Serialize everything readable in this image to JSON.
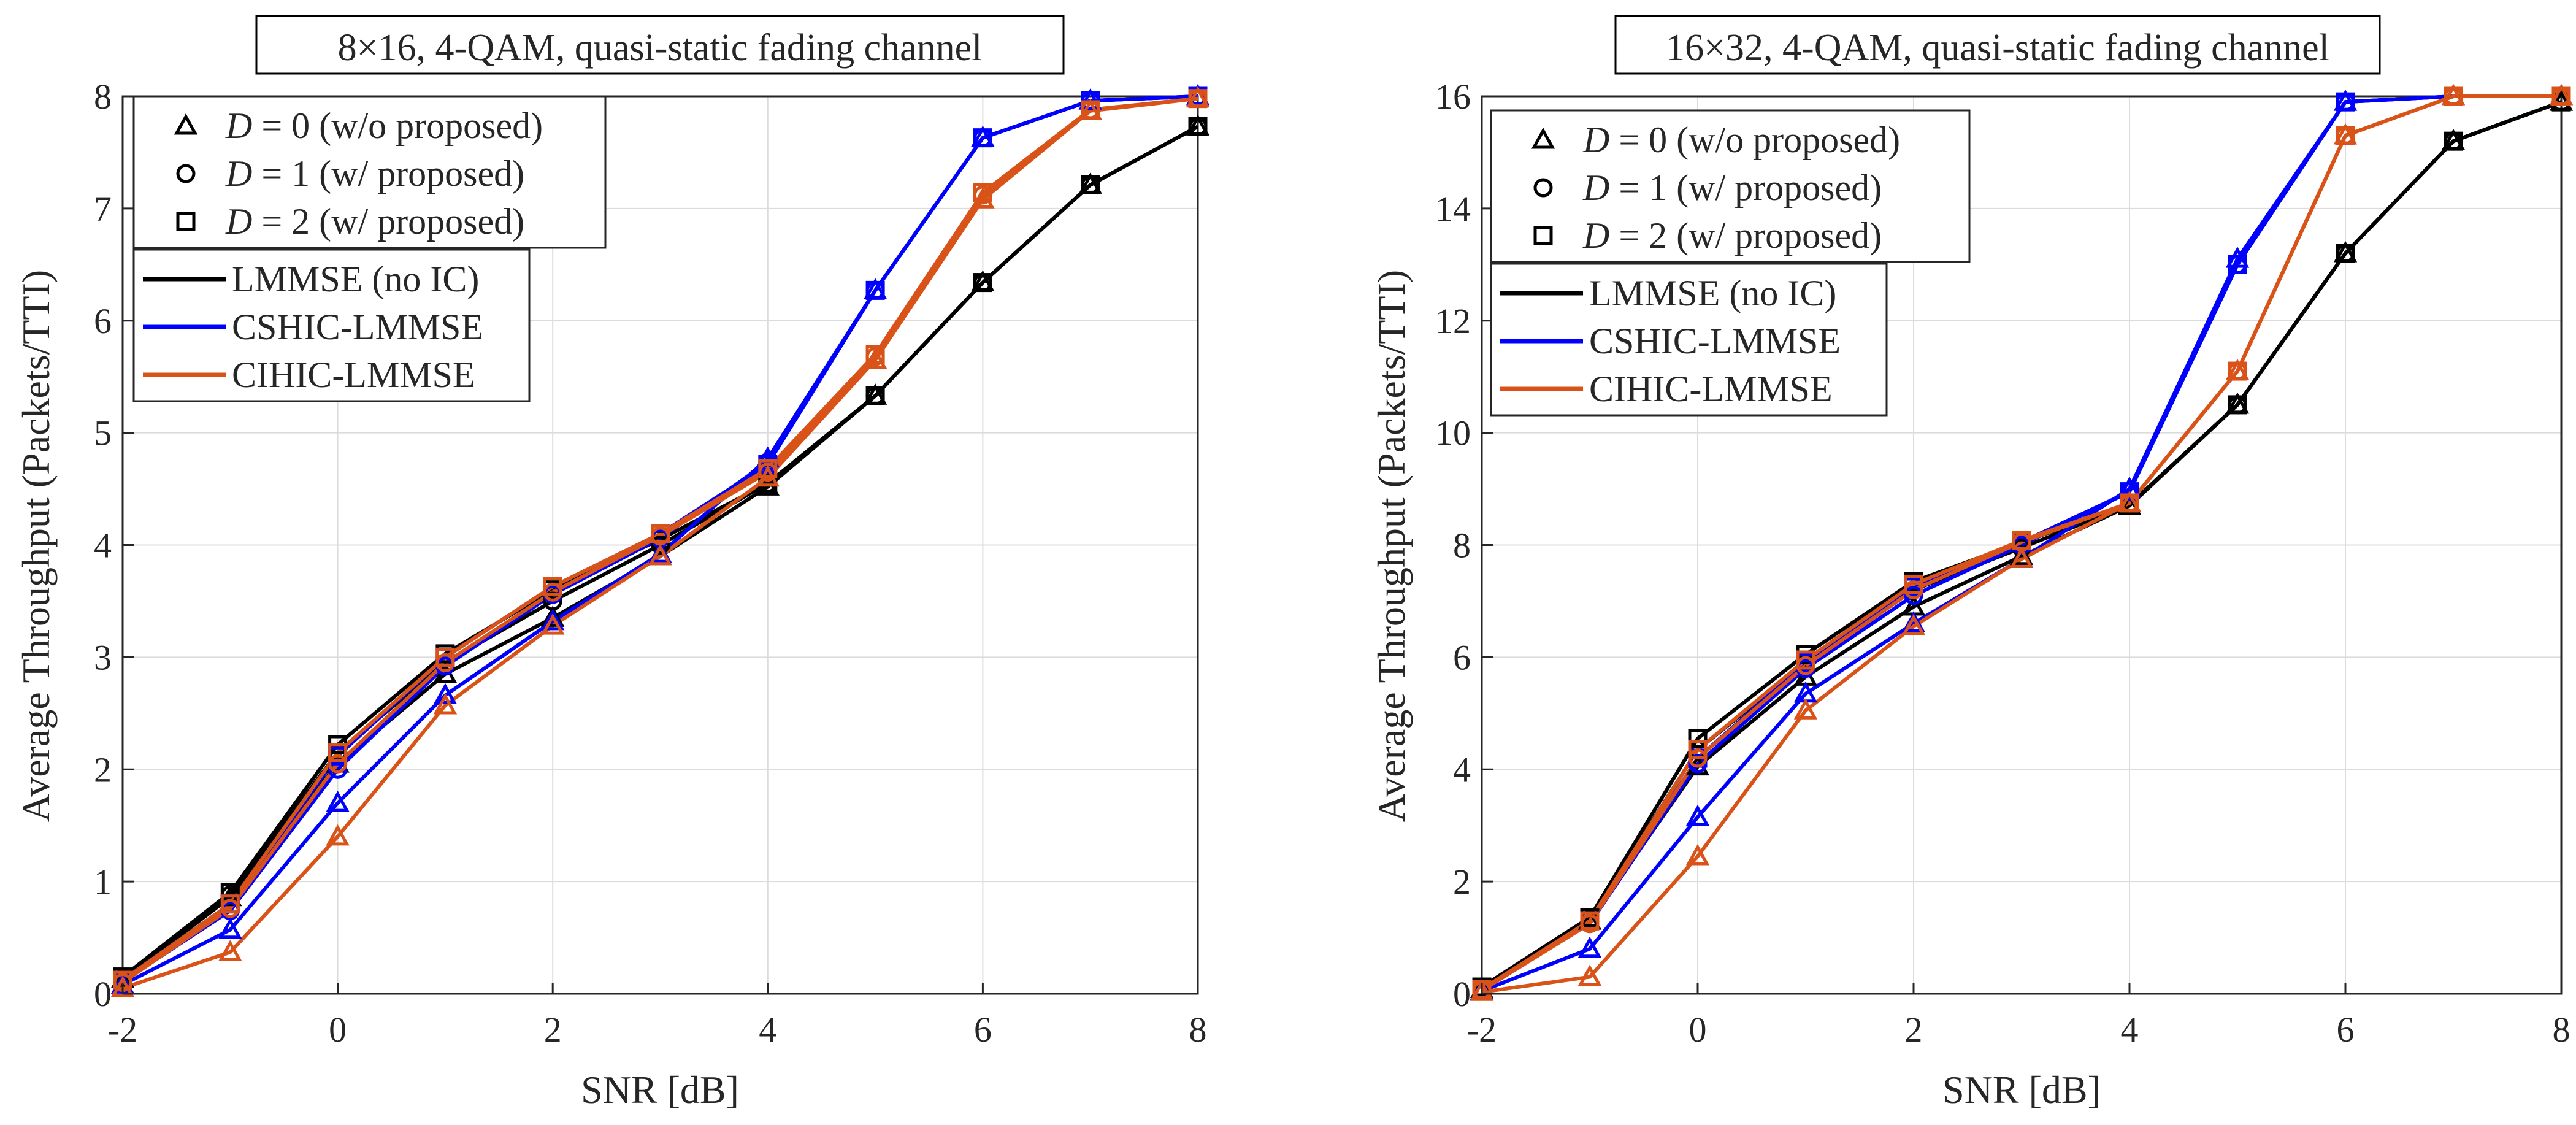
{
  "chart_data": [
    {
      "type": "line",
      "title": "8×16, 4-QAM, quasi-static fading channel",
      "xlabel": "SNR [dB]",
      "ylabel": "Average Throughput (Packets/TTI)",
      "xlim": [
        -2,
        8
      ],
      "ylim": [
        0,
        8
      ],
      "xticks": [
        -2,
        0,
        2,
        4,
        6,
        8
      ],
      "yticks": [
        0,
        1,
        2,
        3,
        4,
        5,
        6,
        7,
        8
      ],
      "grid": true,
      "x": [
        -2,
        -1,
        0,
        1,
        2,
        3,
        4,
        5,
        6,
        7,
        8
      ],
      "marker_legend": [
        {
          "marker": "triangle",
          "label_var": "D",
          "label_rest": " = 0 (w/o proposed)"
        },
        {
          "marker": "circle",
          "label_var": "D",
          "label_rest": " = 1 (w/ proposed)"
        },
        {
          "marker": "square",
          "label_var": "D",
          "label_rest": " = 2 (w/ proposed)"
        }
      ],
      "line_legend": [
        {
          "label": "LMMSE (no IC)",
          "color": "#000000"
        },
        {
          "label": "CSHIC-LMMSE",
          "color": "#0000ff"
        },
        {
          "label": "CIHIC-LMMSE",
          "color": "#d95319"
        }
      ],
      "series": [
        {
          "name": "LMMSE (no IC), D = 0",
          "color": "#000000",
          "marker": "triangle",
          "values": [
            0.13,
            0.86,
            2.05,
            2.85,
            3.35,
            3.9,
            4.52,
            5.33,
            6.34,
            7.21,
            7.73
          ]
        },
        {
          "name": "LMMSE (no IC), D = 1",
          "color": "#000000",
          "marker": "circle",
          "values": [
            0.14,
            0.88,
            2.15,
            2.95,
            3.5,
            4.0,
            4.55,
            5.33,
            6.34,
            7.21,
            7.73
          ]
        },
        {
          "name": "LMMSE (no IC), D = 2",
          "color": "#000000",
          "marker": "square",
          "values": [
            0.15,
            0.9,
            2.22,
            3.03,
            3.6,
            4.05,
            4.55,
            5.33,
            6.34,
            7.21,
            7.73
          ]
        },
        {
          "name": "CSHIC-LMMSE, D = 0",
          "color": "#0000ff",
          "marker": "triangle",
          "values": [
            0.08,
            0.57,
            1.7,
            2.66,
            3.32,
            3.92,
            4.77,
            6.27,
            7.63,
            7.96,
            8.0
          ]
        },
        {
          "name": "CSHIC-LMMSE, D = 1",
          "color": "#0000ff",
          "marker": "circle",
          "values": [
            0.11,
            0.74,
            2.0,
            2.92,
            3.56,
            4.06,
            4.74,
            6.27,
            7.63,
            7.96,
            8.0
          ]
        },
        {
          "name": "CSHIC-LMMSE, D = 2",
          "color": "#0000ff",
          "marker": "square",
          "values": [
            0.12,
            0.8,
            2.12,
            3.0,
            3.63,
            4.1,
            4.72,
            6.27,
            7.63,
            7.96,
            8.0
          ]
        },
        {
          "name": "CIHIC-LMMSE, D = 0",
          "color": "#d95319",
          "marker": "triangle",
          "values": [
            0.05,
            0.37,
            1.4,
            2.57,
            3.28,
            3.9,
            4.6,
            5.65,
            7.08,
            7.87,
            7.98
          ]
        },
        {
          "name": "CIHIC-LMMSE, D = 1",
          "color": "#d95319",
          "marker": "circle",
          "values": [
            0.1,
            0.76,
            2.05,
            2.95,
            3.58,
            4.08,
            4.65,
            5.68,
            7.12,
            7.88,
            7.98
          ]
        },
        {
          "name": "CIHIC-LMMSE, D = 2",
          "color": "#d95319",
          "marker": "square",
          "values": [
            0.12,
            0.8,
            2.15,
            3.0,
            3.63,
            4.1,
            4.68,
            5.7,
            7.14,
            7.88,
            7.98
          ]
        }
      ]
    },
    {
      "type": "line",
      "title": "16×32, 4-QAM, quasi-static fading channel",
      "xlabel": "SNR [dB]",
      "ylabel": "Average Throughput (Packets/TTI)",
      "xlim": [
        -2,
        8
      ],
      "ylim": [
        0,
        16
      ],
      "xticks": [
        -2,
        0,
        2,
        4,
        6,
        8
      ],
      "yticks": [
        0,
        2,
        4,
        6,
        8,
        10,
        12,
        14,
        16
      ],
      "grid": true,
      "x": [
        -2,
        -1,
        0,
        1,
        2,
        3,
        4,
        5,
        6,
        7,
        8
      ],
      "marker_legend": [
        {
          "marker": "triangle",
          "label_var": "D",
          "label_rest": " = 0 (w/o proposed)"
        },
        {
          "marker": "circle",
          "label_var": "D",
          "label_rest": " = 1 (w/ proposed)"
        },
        {
          "marker": "square",
          "label_var": "D",
          "label_rest": " = 2 (w/ proposed)"
        }
      ],
      "line_legend": [
        {
          "label": "LMMSE (no IC)",
          "color": "#000000"
        },
        {
          "label": "CSHIC-LMMSE",
          "color": "#0000ff"
        },
        {
          "label": "CIHIC-LMMSE",
          "color": "#d95319"
        }
      ],
      "series": [
        {
          "name": "LMMSE (no IC), D = 0",
          "color": "#000000",
          "marker": "triangle",
          "values": [
            0.08,
            1.3,
            4.05,
            5.65,
            6.9,
            7.8,
            8.7,
            10.5,
            13.2,
            15.2,
            15.9
          ]
        },
        {
          "name": "LMMSE (no IC), D = 1",
          "color": "#000000",
          "marker": "circle",
          "values": [
            0.1,
            1.33,
            4.35,
            5.9,
            7.2,
            7.95,
            8.72,
            10.5,
            13.2,
            15.2,
            15.9
          ]
        },
        {
          "name": "LMMSE (no IC), D = 2",
          "color": "#000000",
          "marker": "square",
          "values": [
            0.12,
            1.36,
            4.55,
            6.05,
            7.35,
            8.05,
            8.72,
            10.5,
            13.2,
            15.2,
            15.9
          ]
        },
        {
          "name": "CSHIC-LMMSE, D = 0",
          "color": "#0000ff",
          "marker": "triangle",
          "values": [
            0.05,
            0.8,
            3.15,
            5.35,
            6.6,
            7.75,
            9.0,
            13.1,
            15.9,
            16.0,
            16.0
          ]
        },
        {
          "name": "CSHIC-LMMSE, D = 1",
          "color": "#0000ff",
          "marker": "circle",
          "values": [
            0.07,
            1.25,
            4.1,
            5.8,
            7.1,
            8.0,
            8.95,
            13.0,
            15.9,
            16.0,
            16.0
          ]
        },
        {
          "name": "CSHIC-LMMSE, D = 2",
          "color": "#0000ff",
          "marker": "square",
          "values": [
            0.08,
            1.3,
            4.2,
            5.9,
            7.25,
            8.05,
            8.95,
            13.0,
            15.9,
            16.0,
            16.0
          ]
        },
        {
          "name": "CIHIC-LMMSE, D = 0",
          "color": "#d95319",
          "marker": "triangle",
          "values": [
            0.03,
            0.3,
            2.45,
            5.05,
            6.55,
            7.75,
            8.75,
            11.1,
            15.3,
            16.0,
            16.0
          ]
        },
        {
          "name": "CIHIC-LMMSE, D = 1",
          "color": "#d95319",
          "marker": "circle",
          "values": [
            0.06,
            1.25,
            4.2,
            5.85,
            7.2,
            8.05,
            8.75,
            11.1,
            15.3,
            16.0,
            16.0
          ]
        },
        {
          "name": "CIHIC-LMMSE, D = 2",
          "color": "#d95319",
          "marker": "square",
          "values": [
            0.08,
            1.3,
            4.35,
            5.95,
            7.3,
            8.08,
            8.75,
            11.1,
            15.3,
            16.0,
            16.0
          ]
        }
      ]
    }
  ]
}
